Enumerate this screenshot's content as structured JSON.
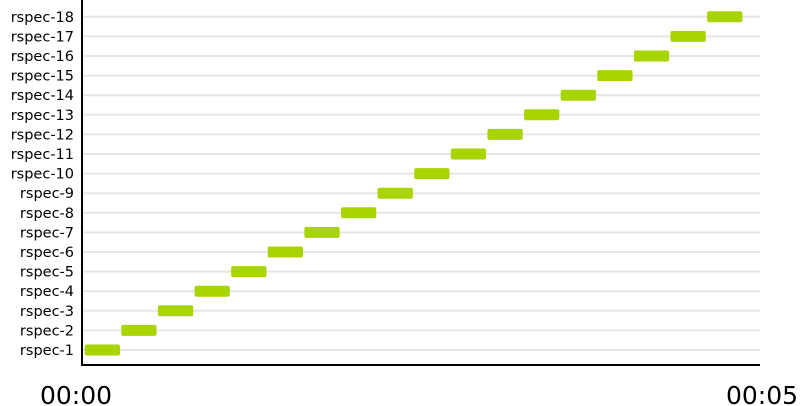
{
  "chart_data": {
    "type": "gantt",
    "rows": [
      "rspec-1",
      "rspec-2",
      "rspec-3",
      "rspec-4",
      "rspec-5",
      "rspec-6",
      "rspec-7",
      "rspec-8",
      "rspec-9",
      "rspec-10",
      "rspec-11",
      "rspec-12",
      "rspec-13",
      "rspec-14",
      "rspec-15",
      "rspec-16",
      "rspec-17",
      "rspec-18"
    ],
    "bars": [
      {
        "row": "rspec-1",
        "start": 0.02,
        "end": 0.28
      },
      {
        "row": "rspec-2",
        "start": 0.29,
        "end": 0.55
      },
      {
        "row": "rspec-3",
        "start": 0.56,
        "end": 0.82
      },
      {
        "row": "rspec-4",
        "start": 0.83,
        "end": 1.09
      },
      {
        "row": "rspec-5",
        "start": 1.1,
        "end": 1.36
      },
      {
        "row": "rspec-6",
        "start": 1.37,
        "end": 1.63
      },
      {
        "row": "rspec-7",
        "start": 1.64,
        "end": 1.9
      },
      {
        "row": "rspec-8",
        "start": 1.91,
        "end": 2.17
      },
      {
        "row": "rspec-9",
        "start": 2.18,
        "end": 2.44
      },
      {
        "row": "rspec-10",
        "start": 2.45,
        "end": 2.71
      },
      {
        "row": "rspec-11",
        "start": 2.72,
        "end": 2.98
      },
      {
        "row": "rspec-12",
        "start": 2.99,
        "end": 3.25
      },
      {
        "row": "rspec-13",
        "start": 3.26,
        "end": 3.52
      },
      {
        "row": "rspec-14",
        "start": 3.53,
        "end": 3.79
      },
      {
        "row": "rspec-15",
        "start": 3.8,
        "end": 4.06
      },
      {
        "row": "rspec-16",
        "start": 4.07,
        "end": 4.33
      },
      {
        "row": "rspec-17",
        "start": 4.34,
        "end": 4.6
      },
      {
        "row": "rspec-18",
        "start": 4.61,
        "end": 4.87
      }
    ],
    "x_ticks": [
      "00:00",
      "00:05"
    ],
    "xlim": [
      0,
      5
    ],
    "grid": true,
    "bar_color": "#a8d400"
  }
}
